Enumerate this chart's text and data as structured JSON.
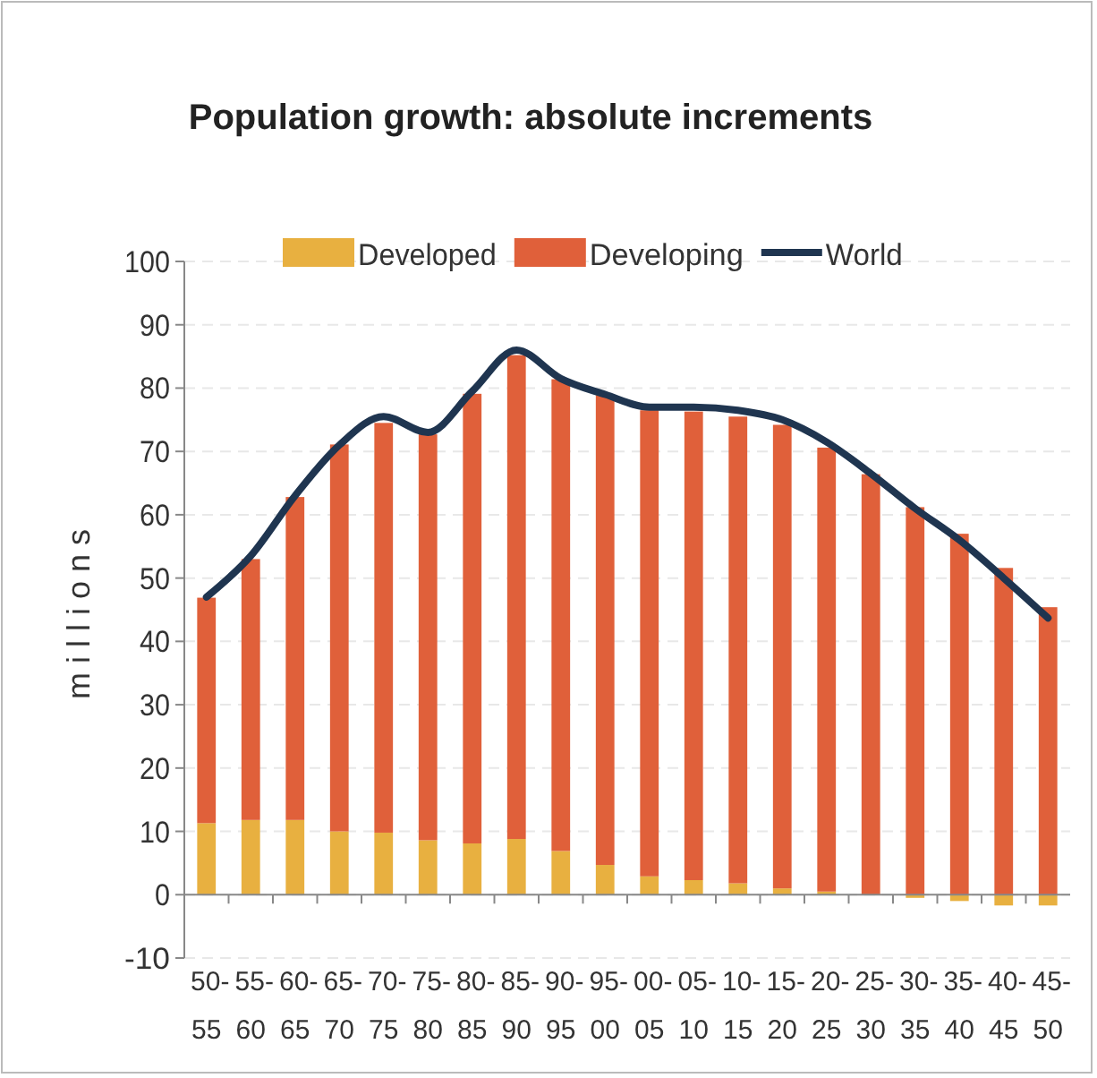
{
  "chart_data": {
    "type": "bar",
    "title": "Population growth: absolute increments",
    "ylabel": "millions",
    "categories": [
      "50-55",
      "55-60",
      "60-65",
      "65-70",
      "70-75",
      "75-80",
      "80-85",
      "85-90",
      "90-95",
      "95-00",
      "00-05",
      "05-10",
      "10-15",
      "15-20",
      "20-25",
      "25-30",
      "30-35",
      "35-40",
      "40-45",
      "45-50"
    ],
    "stacked": true,
    "series": [
      {
        "name": "Developed",
        "color": "#e8b040",
        "values": [
          11.3,
          11.8,
          11.8,
          10,
          9.8,
          8.6,
          8.1,
          8.8,
          6.9,
          4.7,
          2.9,
          2.3,
          1.8,
          1,
          0.5,
          0,
          -0.5,
          -1,
          -1.7,
          -1.7
        ]
      },
      {
        "name": "Developing",
        "color": "#e0603a",
        "values": [
          35.6,
          41.2,
          51,
          61.1,
          64.7,
          64.1,
          71,
          76.4,
          74.5,
          74.2,
          73.6,
          74,
          73.7,
          73.2,
          70.1,
          66.4,
          61.2,
          57,
          51.6,
          45.4
        ]
      },
      {
        "name": "World",
        "type": "line",
        "color": "#1f3550",
        "values": [
          47,
          53.5,
          63,
          71,
          75.5,
          73,
          79.5,
          86,
          81.5,
          79,
          77,
          77,
          76.5,
          75,
          71.5,
          66.5,
          61,
          56,
          50,
          43.7
        ]
      }
    ],
    "ylim": [
      -10,
      100
    ],
    "yticks": [
      -10,
      0,
      10,
      20,
      30,
      40,
      50,
      60,
      70,
      80,
      90,
      100
    ],
    "grid": "y",
    "legend": "top"
  }
}
